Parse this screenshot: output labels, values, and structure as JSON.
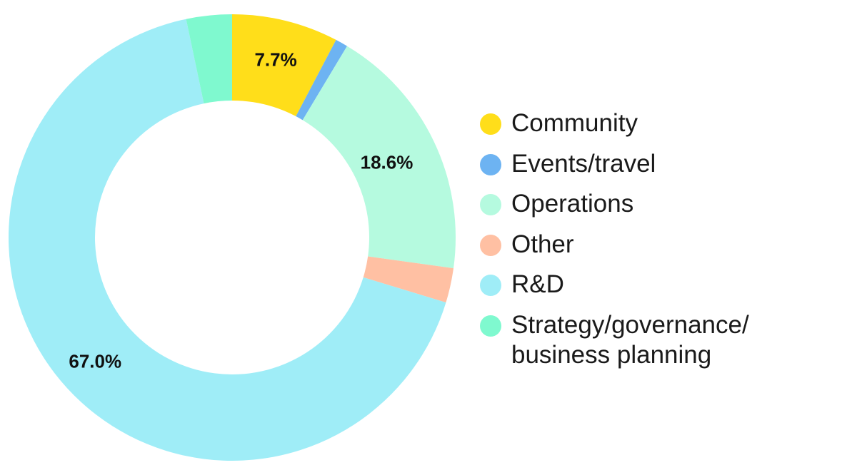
{
  "chart_data": {
    "type": "pie",
    "variant": "donut",
    "categories": [
      "Community",
      "Events/travel",
      "Operations",
      "Other",
      "R&D",
      "Strategy/governance/\nbusiness planning"
    ],
    "values": [
      7.7,
      0.9,
      18.6,
      2.5,
      67.0,
      3.3
    ],
    "colors": [
      "#FFDE1A",
      "#6DB3F2",
      "#B5FADF",
      "#FFC0A3",
      "#9FEDF7",
      "#7FF9CF"
    ],
    "data_labels": [
      "7.7%",
      "",
      "18.6%",
      "",
      "67.0%",
      ""
    ],
    "start_angle_deg": 0,
    "direction": "clockwise",
    "legend_position": "right"
  }
}
